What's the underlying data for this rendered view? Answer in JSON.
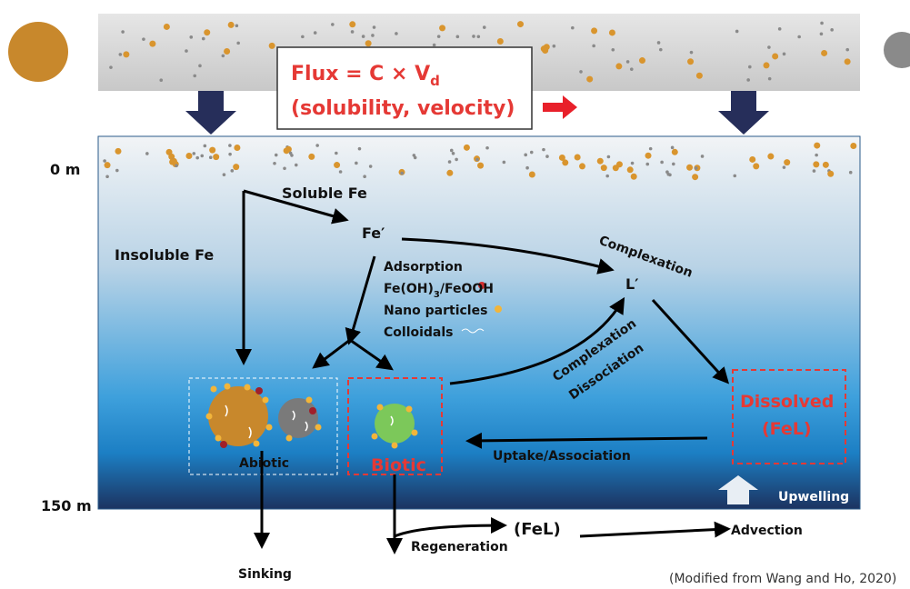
{
  "atmosphere": {
    "flux_formula": {
      "main": "Flux = C × V",
      "subscript": "d"
    },
    "flux_note": "(solubility, velocity)"
  },
  "depth_labels": [
    "0 m",
    "150 m"
  ],
  "pathways": {
    "soluble": "Soluble Fe",
    "insoluble": "Insoluble Fe",
    "fe_prime": "Fe′",
    "l_prime": "L′",
    "complexation_top": "Complexation",
    "complexation_mid": "Complexation",
    "dissociation": "Dissociation"
  },
  "adsorption": {
    "title": "Adsorption",
    "oxide": {
      "main": "Fe(OH)",
      "subscript": "3",
      "rest": "/FeOOH"
    },
    "nano": "Nano particles",
    "colloidals": "Colloidals"
  },
  "pools": {
    "abiotic": "Abiotic",
    "biotic": "Biotic",
    "dissolved": "Dissolved",
    "dissolved_form": "(FeL)"
  },
  "processes": {
    "uptake": "Uptake/Association",
    "upwelling": "Upwelling",
    "sinking": "Sinking",
    "regeneration": "Regeneration",
    "regenerated_form": "(FeL)",
    "advection": "Advection"
  },
  "source": "(Modified from Wang and Ho, 2020)"
}
